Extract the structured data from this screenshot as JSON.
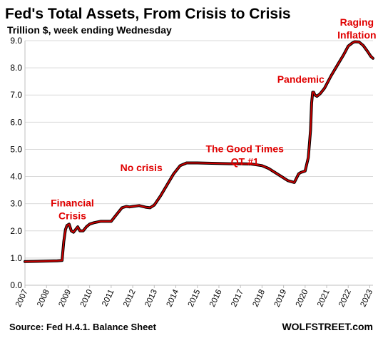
{
  "chart_data": {
    "type": "line",
    "title": "Fed's Total Assets, From Crisis to Crisis",
    "subtitle": "Trillion $, week ending Wednesday",
    "xlabel": "",
    "ylabel": "",
    "ylim": [
      0,
      9
    ],
    "y_ticks": [
      "0.0",
      "1.0",
      "2.0",
      "3.0",
      "4.0",
      "5.0",
      "6.0",
      "7.0",
      "8.0",
      "9.0"
    ],
    "x_ticks": [
      "2007",
      "2008",
      "2009",
      "2010",
      "2011",
      "2012",
      "2013",
      "2014",
      "2015",
      "2016",
      "2017",
      "2018",
      "2019",
      "2020",
      "2021",
      "2022",
      "2023"
    ],
    "xlim": [
      2007.0,
      2023.15
    ],
    "grid": "horizontal",
    "series": [
      {
        "color": "#cc0000",
        "x": [
          2007.0,
          2007.5,
          2008.0,
          2008.5,
          2008.72,
          2008.8,
          2008.88,
          2008.95,
          2009.05,
          2009.15,
          2009.25,
          2009.35,
          2009.45,
          2009.55,
          2009.7,
          2009.85,
          2010.0,
          2010.2,
          2010.5,
          2010.8,
          2011.0,
          2011.2,
          2011.5,
          2011.7,
          2011.85,
          2012.0,
          2012.3,
          2012.6,
          2012.8,
          2013.0,
          2013.3,
          2013.6,
          2013.9,
          2014.2,
          2014.5,
          2014.8,
          2015.0,
          2015.5,
          2016.0,
          2016.5,
          2017.0,
          2017.5,
          2018.0,
          2018.3,
          2018.6,
          2018.9,
          2019.2,
          2019.5,
          2019.7,
          2019.8,
          2020.0,
          2020.15,
          2020.25,
          2020.3,
          2020.35,
          2020.4,
          2020.45,
          2020.55,
          2020.7,
          2020.9,
          2021.2,
          2021.5,
          2021.8,
          2022.0,
          2022.2,
          2022.3,
          2022.5,
          2022.7,
          2022.9,
          2023.05,
          2023.15
        ],
        "values": [
          0.87,
          0.88,
          0.89,
          0.9,
          0.91,
          1.6,
          2.05,
          2.2,
          2.25,
          2.0,
          1.95,
          2.05,
          2.15,
          2.0,
          2.0,
          2.15,
          2.25,
          2.3,
          2.35,
          2.35,
          2.35,
          2.55,
          2.85,
          2.9,
          2.88,
          2.9,
          2.93,
          2.87,
          2.85,
          2.95,
          3.3,
          3.7,
          4.1,
          4.4,
          4.5,
          4.5,
          4.5,
          4.49,
          4.48,
          4.47,
          4.47,
          4.46,
          4.4,
          4.3,
          4.15,
          4.0,
          3.85,
          3.78,
          4.1,
          4.15,
          4.2,
          4.7,
          5.7,
          6.7,
          7.1,
          7.1,
          7.0,
          6.95,
          7.05,
          7.25,
          7.7,
          8.1,
          8.5,
          8.8,
          8.92,
          8.96,
          8.95,
          8.82,
          8.6,
          8.42,
          8.35
        ]
      }
    ],
    "annotations": [
      {
        "lines": [
          "Financial",
          "Crisis"
        ],
        "x": 2009.2,
        "y": 2.9
      },
      {
        "lines": [
          "No crisis"
        ],
        "x": 2012.4,
        "y": 4.2
      },
      {
        "lines": [
          "The Good Times",
          "QT #1"
        ],
        "x": 2017.2,
        "y": 4.9
      },
      {
        "lines": [
          "Pandemic"
        ],
        "x": 2019.8,
        "y": 7.45
      },
      {
        "lines": [
          "Raging",
          "Inflation"
        ],
        "x": 2022.4,
        "y": 9.55
      }
    ],
    "source": "Source: Fed H.4.1. Balance Sheet",
    "brand": "WOLFSTREET.com"
  }
}
